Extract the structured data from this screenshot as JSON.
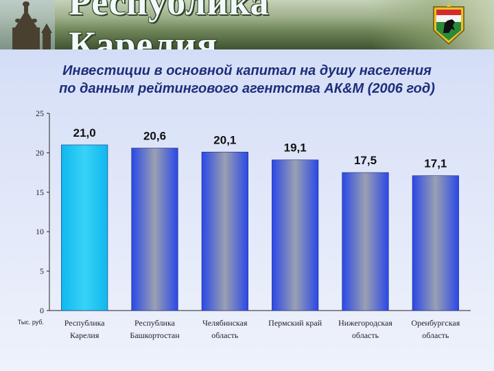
{
  "banner": {
    "title": "Республика Карелия",
    "icons": [
      "wooden-church-icon",
      "coat-of-arms-icon"
    ]
  },
  "subtitle": {
    "line1": "Инвестиции в основной капитал на душу населения",
    "line2": "по данным рейтингового агентства АК&М (2006 год)"
  },
  "chart_data": {
    "type": "bar",
    "categories": [
      [
        "Республика",
        "Карелия"
      ],
      [
        "Республика",
        "Башкортостан"
      ],
      [
        "Челябинская",
        "область"
      ],
      [
        "Пермский край"
      ],
      [
        "Нижегородская",
        "область"
      ],
      [
        "Оренбургская",
        "область"
      ]
    ],
    "values": [
      21.0,
      20.6,
      20.1,
      19.1,
      17.5,
      17.1
    ],
    "data_labels": [
      "21,0",
      "20,6",
      "20,1",
      "19,1",
      "17,5",
      "17,1"
    ],
    "ylim": [
      0,
      25
    ],
    "yticks": [
      0,
      5,
      10,
      15,
      20,
      25
    ],
    "ylabel": "Тыс. руб.",
    "highlight_index": 0,
    "colors": {
      "highlight": "#16c8f2",
      "bar": "#2a48e6",
      "bar_center": "#9aa0b2"
    }
  }
}
